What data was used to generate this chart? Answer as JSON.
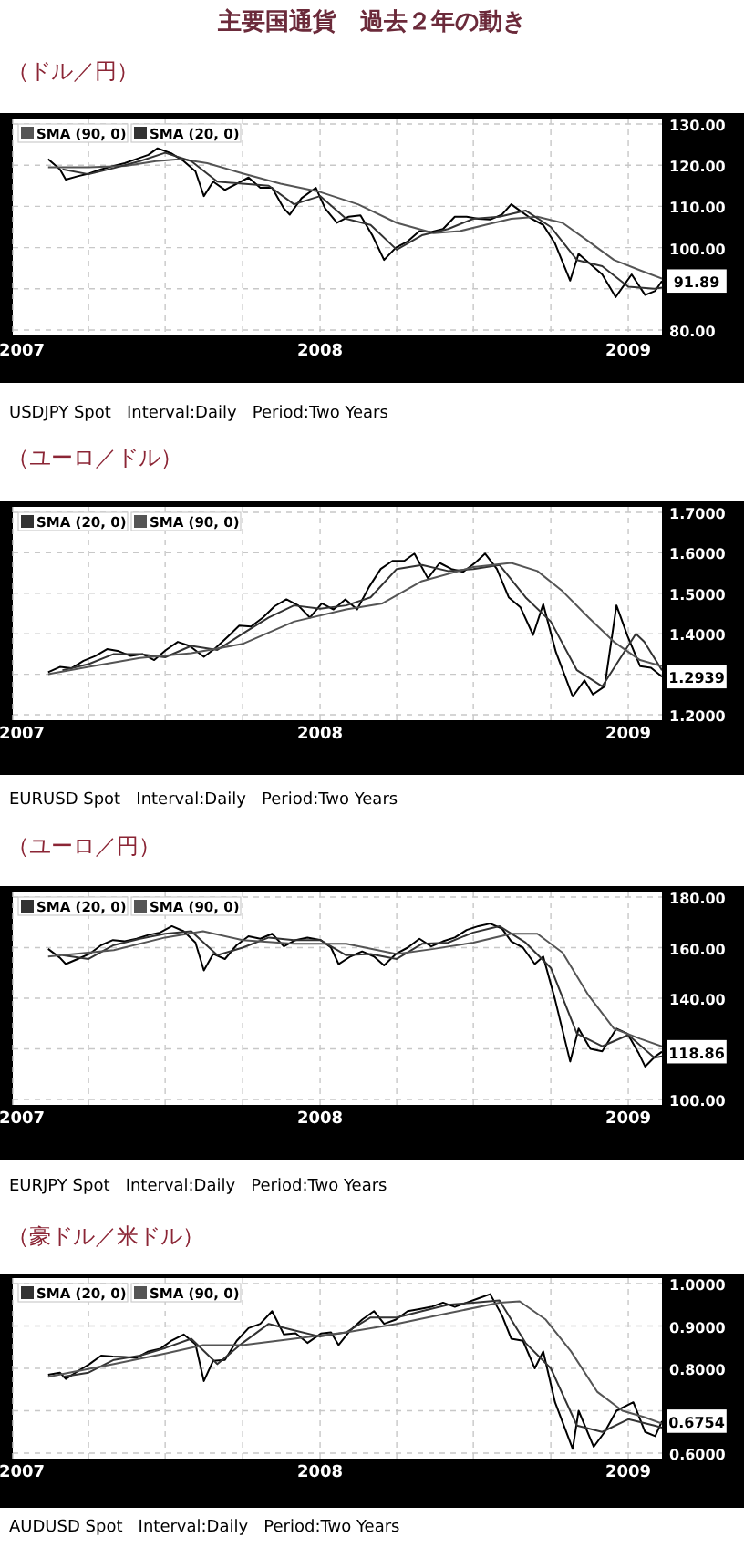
{
  "chart_data": [
    {
      "type": "line",
      "title": "主要国通貨　過去２年の動き",
      "subtitle": "（ドル／円）",
      "xlim": [
        "2007-01-01",
        "2009-02-10"
      ],
      "xticks": [
        "2007",
        {
          "value": "2007-04",
          "label": null
        },
        {
          "value": "2007-07",
          "label": null
        },
        {
          "value": "2007-10",
          "label": null
        },
        "2008",
        {
          "value": "2008-04",
          "label": null
        },
        {
          "value": "2008-07",
          "label": null
        },
        {
          "value": "2008-10",
          "label": null
        },
        "2009"
      ],
      "ylim": [
        80,
        130
      ],
      "yticks": [
        {
          "value": 80,
          "label": "80.00"
        },
        {
          "value": 90,
          "label": null
        },
        {
          "value": 100,
          "label": "100.00"
        },
        {
          "value": 110,
          "label": "110.00"
        },
        {
          "value": 120,
          "label": "120.00"
        },
        {
          "value": 130,
          "label": "130.00"
        }
      ],
      "grid": true,
      "legend": "top left",
      "series": [
        {
          "color": "#000000",
          "x": [
            "2007-02-12",
            "2007-02-26",
            "2007-03-05",
            "2007-03-19",
            "2007-04-02",
            "2007-04-16",
            "2007-04-30",
            "2007-05-14",
            "2007-05-28",
            "2007-06-11",
            "2007-06-22",
            "2007-07-09",
            "2007-07-23",
            "2007-08-06",
            "2007-08-16",
            "2007-08-27",
            "2007-09-10",
            "2007-09-24",
            "2007-10-08",
            "2007-10-22",
            "2007-11-05",
            "2007-11-19",
            "2007-11-26",
            "2007-12-10",
            "2007-12-27",
            "2008-01-07",
            "2008-01-21",
            "2008-02-04",
            "2008-02-18",
            "2008-03-03",
            "2008-03-17",
            "2008-03-31",
            "2008-04-14",
            "2008-04-28",
            "2008-05-12",
            "2008-05-26",
            "2008-06-09",
            "2008-06-23",
            "2008-07-07",
            "2008-07-21",
            "2008-08-04",
            "2008-08-15",
            "2008-08-25",
            "2008-09-08",
            "2008-09-22",
            "2008-10-06",
            "2008-10-24",
            "2008-11-03",
            "2008-11-17",
            "2008-12-01",
            "2008-12-17",
            "2009-01-05",
            "2009-01-21",
            "2009-02-02",
            "2009-02-10"
          ],
          "values": [
            121.5,
            119.0,
            116.5,
            117.3,
            118.0,
            119.0,
            119.8,
            120.5,
            121.5,
            122.5,
            124.1,
            122.8,
            121.0,
            118.5,
            112.5,
            116.0,
            114.0,
            115.5,
            117.0,
            114.5,
            114.5,
            109.5,
            108.0,
            112.0,
            114.5,
            109.5,
            106.0,
            107.5,
            107.8,
            103.0,
            97.0,
            100.0,
            101.5,
            104.0,
            103.8,
            104.5,
            107.5,
            107.5,
            107.0,
            106.8,
            108.0,
            110.5,
            109.0,
            107.0,
            105.5,
            101.0,
            92.0,
            98.5,
            96.0,
            93.5,
            88.0,
            93.5,
            88.5,
            89.5,
            91.89
          ]
        },
        {
          "name": "SMA (90, 0)",
          "color": "#555555",
          "x": [
            "2007-02-12",
            "2007-04-01",
            "2007-05-15",
            "2007-06-20",
            "2007-07-20",
            "2007-08-20",
            "2007-10-01",
            "2007-11-15",
            "2008-01-01",
            "2008-02-15",
            "2008-04-01",
            "2008-05-15",
            "2008-06-15",
            "2008-07-15",
            "2008-08-15",
            "2008-09-15",
            "2008-10-15",
            "2008-11-15",
            "2008-12-15",
            "2009-01-15",
            "2009-02-10"
          ],
          "values": [
            119.5,
            119.5,
            119.8,
            121.0,
            121.5,
            120.5,
            118.0,
            115.5,
            113.5,
            110.5,
            106.0,
            103.5,
            104.0,
            105.5,
            107.0,
            107.5,
            106.0,
            101.5,
            97.0,
            94.5,
            92.5
          ]
        },
        {
          "name": "SMA (20, 0)",
          "color": "#333333",
          "x": [
            "2007-03-01",
            "2007-04-01",
            "2007-05-01",
            "2007-06-01",
            "2007-07-01",
            "2007-08-01",
            "2007-09-01",
            "2007-10-01",
            "2007-11-01",
            "2007-12-01",
            "2008-01-01",
            "2008-02-01",
            "2008-03-01",
            "2008-04-01",
            "2008-05-01",
            "2008-06-01",
            "2008-07-01",
            "2008-08-01",
            "2008-09-01",
            "2008-10-01",
            "2008-11-01",
            "2008-12-01",
            "2009-01-01",
            "2009-02-01",
            "2009-02-10"
          ],
          "values": [
            119.0,
            117.8,
            119.3,
            121.0,
            123.0,
            121.0,
            116.0,
            115.5,
            115.0,
            110.5,
            112.5,
            107.0,
            105.5,
            99.5,
            103.0,
            104.5,
            107.0,
            107.5,
            109.0,
            105.0,
            97.0,
            95.5,
            90.5,
            90.0,
            90.3
          ]
        }
      ],
      "annotations": [
        "USDJPY Spot   Interval:Daily   Period:Two Years",
        {
          "text": "91.89",
          "x": "2009-02-10",
          "y": 91.89
        }
      ]
    },
    {
      "type": "line",
      "subtitle": "（ユーロ／ドル）",
      "xlim": [
        "2007-01-01",
        "2009-02-10"
      ],
      "xticks": [
        "2007",
        {
          "value": "2007-04",
          "label": null
        },
        {
          "value": "2007-07",
          "label": null
        },
        {
          "value": "2007-10",
          "label": null
        },
        "2008",
        {
          "value": "2008-04",
          "label": null
        },
        {
          "value": "2008-07",
          "label": null
        },
        {
          "value": "2008-10",
          "label": null
        },
        "2009"
      ],
      "ylim": [
        1.2,
        1.7
      ],
      "yticks": [
        {
          "value": 1.2,
          "label": "1.2000"
        },
        {
          "value": 1.3,
          "label": null
        },
        {
          "value": 1.4,
          "label": "1.4000"
        },
        {
          "value": 1.5,
          "label": "1.5000"
        },
        {
          "value": 1.6,
          "label": "1.6000"
        },
        {
          "value": 1.7,
          "label": "1.7000"
        }
      ],
      "grid": true,
      "legend": "top left",
      "series": [
        {
          "color": "#000000",
          "x": [
            "2007-02-12",
            "2007-02-26",
            "2007-03-12",
            "2007-03-26",
            "2007-04-09",
            "2007-04-23",
            "2007-05-07",
            "2007-05-21",
            "2007-06-04",
            "2007-06-18",
            "2007-07-02",
            "2007-07-16",
            "2007-07-30",
            "2007-08-16",
            "2007-08-30",
            "2007-09-13",
            "2007-09-27",
            "2007-10-11",
            "2007-10-25",
            "2007-11-08",
            "2007-11-22",
            "2007-12-06",
            "2007-12-20",
            "2008-01-03",
            "2008-01-17",
            "2008-01-31",
            "2008-02-14",
            "2008-02-28",
            "2008-03-13",
            "2008-03-27",
            "2008-04-10",
            "2008-04-22",
            "2008-05-08",
            "2008-05-22",
            "2008-06-05",
            "2008-06-19",
            "2008-07-03",
            "2008-07-15",
            "2008-07-29",
            "2008-08-12",
            "2008-08-26",
            "2008-09-10",
            "2008-09-22",
            "2008-10-07",
            "2008-10-27",
            "2008-11-10",
            "2008-11-20",
            "2008-12-04",
            "2008-12-18",
            "2008-12-31",
            "2009-01-15",
            "2009-01-28",
            "2009-02-10"
          ],
          "values": [
            1.305,
            1.318,
            1.315,
            1.333,
            1.345,
            1.362,
            1.357,
            1.345,
            1.35,
            1.335,
            1.36,
            1.38,
            1.37,
            1.343,
            1.365,
            1.392,
            1.42,
            1.418,
            1.44,
            1.468,
            1.485,
            1.47,
            1.44,
            1.475,
            1.46,
            1.485,
            1.46,
            1.515,
            1.56,
            1.58,
            1.58,
            1.598,
            1.537,
            1.575,
            1.56,
            1.553,
            1.575,
            1.598,
            1.56,
            1.49,
            1.465,
            1.397,
            1.473,
            1.355,
            1.245,
            1.285,
            1.25,
            1.27,
            1.47,
            1.395,
            1.32,
            1.316,
            1.2939
          ]
        },
        {
          "name": "SMA (20, 0)",
          "color": "#333333",
          "x": [
            "2007-03-01",
            "2007-04-01",
            "2007-05-01",
            "2007-06-01",
            "2007-07-01",
            "2007-08-01",
            "2007-09-01",
            "2007-10-01",
            "2007-11-01",
            "2007-12-01",
            "2008-01-01",
            "2008-02-01",
            "2008-03-01",
            "2008-04-01",
            "2008-05-01",
            "2008-06-01",
            "2008-07-01",
            "2008-08-01",
            "2008-09-01",
            "2008-10-01",
            "2008-11-01",
            "2008-12-01",
            "2009-01-10",
            "2009-01-20",
            "2009-02-10"
          ],
          "values": [
            1.31,
            1.325,
            1.35,
            1.35,
            1.342,
            1.37,
            1.36,
            1.4,
            1.44,
            1.47,
            1.462,
            1.47,
            1.49,
            1.56,
            1.57,
            1.555,
            1.56,
            1.57,
            1.49,
            1.43,
            1.31,
            1.27,
            1.4,
            1.38,
            1.31
          ]
        },
        {
          "name": "SMA (90, 0)",
          "color": "#555555",
          "x": [
            "2007-02-12",
            "2007-04-01",
            "2007-06-01",
            "2007-08-01",
            "2007-10-01",
            "2007-12-01",
            "2008-02-01",
            "2008-03-15",
            "2008-05-01",
            "2008-07-01",
            "2008-08-15",
            "2008-09-15",
            "2008-10-15",
            "2008-11-15",
            "2008-12-15",
            "2009-01-15",
            "2009-02-10"
          ],
          "values": [
            1.3,
            1.318,
            1.34,
            1.352,
            1.375,
            1.43,
            1.46,
            1.475,
            1.53,
            1.565,
            1.575,
            1.555,
            1.505,
            1.44,
            1.38,
            1.335,
            1.32
          ]
        }
      ],
      "annotations": [
        "EURUSD Spot   Interval:Daily   Period:Two Years",
        {
          "text": "1.2939",
          "x": "2009-02-10",
          "y": 1.2939
        }
      ]
    },
    {
      "type": "line",
      "subtitle": "（ユーロ／円）",
      "xlim": [
        "2007-01-01",
        "2009-02-10"
      ],
      "xticks": [
        "2007",
        {
          "value": "2007-04",
          "label": null
        },
        {
          "value": "2007-07",
          "label": null
        },
        {
          "value": "2007-10",
          "label": null
        },
        "2008",
        {
          "value": "2008-04",
          "label": null
        },
        {
          "value": "2008-07",
          "label": null
        },
        {
          "value": "2008-10",
          "label": null
        },
        "2009"
      ],
      "ylim": [
        100,
        180
      ],
      "yticks": [
        {
          "value": 100,
          "label": "100.00"
        },
        {
          "value": 120,
          "label": null
        },
        {
          "value": 140,
          "label": "140.00"
        },
        {
          "value": 160,
          "label": "160.00"
        },
        {
          "value": 180,
          "label": "180.00"
        }
      ],
      "grid": true,
      "legend": "top left",
      "series": [
        {
          "color": "#000000",
          "x": [
            "2007-02-12",
            "2007-02-26",
            "2007-03-05",
            "2007-03-19",
            "2007-04-02",
            "2007-04-16",
            "2007-04-30",
            "2007-05-14",
            "2007-05-28",
            "2007-06-11",
            "2007-06-25",
            "2007-07-09",
            "2007-07-23",
            "2007-08-06",
            "2007-08-16",
            "2007-08-27",
            "2007-09-10",
            "2007-09-24",
            "2007-10-08",
            "2007-10-22",
            "2007-11-05",
            "2007-11-19",
            "2007-12-03",
            "2007-12-17",
            "2008-01-02",
            "2008-01-14",
            "2008-01-23",
            "2008-02-06",
            "2008-02-20",
            "2008-03-05",
            "2008-03-17",
            "2008-03-31",
            "2008-04-14",
            "2008-04-28",
            "2008-05-12",
            "2008-05-26",
            "2008-06-09",
            "2008-06-23",
            "2008-07-07",
            "2008-07-21",
            "2008-08-04",
            "2008-08-15",
            "2008-08-29",
            "2008-09-12",
            "2008-09-22",
            "2008-10-06",
            "2008-10-24",
            "2008-11-03",
            "2008-11-17",
            "2008-12-01",
            "2008-12-18",
            "2008-12-31",
            "2009-01-13",
            "2009-01-21",
            "2009-02-02",
            "2009-02-10"
          ],
          "values": [
            159.5,
            156.0,
            153.5,
            155.5,
            157.5,
            161.0,
            163.0,
            162.5,
            163.5,
            165.0,
            166.0,
            168.5,
            166.5,
            162.0,
            151.0,
            157.5,
            155.5,
            161.0,
            164.5,
            163.5,
            165.5,
            160.5,
            163.0,
            164.0,
            163.0,
            160.0,
            153.5,
            156.5,
            158.5,
            156.5,
            153.0,
            157.5,
            160.0,
            163.5,
            160.5,
            162.5,
            164.0,
            167.0,
            168.5,
            169.5,
            167.5,
            162.5,
            160.0,
            153.5,
            156.5,
            139.5,
            115.0,
            128.0,
            120.0,
            119.0,
            128.0,
            126.0,
            118.5,
            113.0,
            117.0,
            118.86
          ]
        },
        {
          "name": "SMA (20, 0)",
          "color": "#333333",
          "x": [
            "2007-03-01",
            "2007-04-01",
            "2007-05-01",
            "2007-06-01",
            "2007-07-01",
            "2007-08-01",
            "2007-09-01",
            "2007-10-01",
            "2007-11-01",
            "2007-12-01",
            "2008-01-01",
            "2008-02-01",
            "2008-03-01",
            "2008-04-01",
            "2008-05-01",
            "2008-06-01",
            "2008-07-01",
            "2008-08-01",
            "2008-09-01",
            "2008-10-01",
            "2008-11-01",
            "2008-12-01",
            "2009-01-01",
            "2009-02-01",
            "2009-02-10"
          ],
          "values": [
            157.0,
            155.5,
            161.0,
            163.5,
            165.5,
            166.5,
            157.0,
            160.0,
            164.0,
            163.0,
            163.0,
            157.0,
            157.5,
            155.5,
            161.5,
            162.0,
            166.0,
            168.5,
            162.0,
            152.0,
            126.0,
            121.0,
            125.5,
            116.5,
            117.0
          ]
        },
        {
          "name": "SMA (90, 0)",
          "color": "#555555",
          "x": [
            "2007-02-12",
            "2007-05-01",
            "2007-07-01",
            "2007-08-15",
            "2007-10-01",
            "2007-12-01",
            "2008-02-01",
            "2008-04-01",
            "2008-05-15",
            "2008-07-01",
            "2008-08-15",
            "2008-09-15",
            "2008-10-15",
            "2008-11-15",
            "2008-12-15",
            "2009-01-15",
            "2009-02-10"
          ],
          "values": [
            156.5,
            159.0,
            164.0,
            166.5,
            163.0,
            161.5,
            161.5,
            157.5,
            159.5,
            162.0,
            165.5,
            165.5,
            158.0,
            141.0,
            128.0,
            124.0,
            121.0
          ]
        }
      ],
      "annotations": [
        "EURJPY Spot   Interval:Daily   Period:Two Years",
        {
          "text": "118.86",
          "x": "2009-02-10",
          "y": 118.86
        }
      ]
    },
    {
      "type": "line",
      "subtitle": "（豪ドル／米ドル）",
      "xlim": [
        "2007-01-01",
        "2009-02-10"
      ],
      "xticks": [
        "2007",
        {
          "value": "2007-04",
          "label": null
        },
        {
          "value": "2007-07",
          "label": null
        },
        {
          "value": "2007-10",
          "label": null
        },
        "2008",
        {
          "value": "2008-04",
          "label": null
        },
        {
          "value": "2008-07",
          "label": null
        },
        {
          "value": "2008-10",
          "label": null
        },
        "2009"
      ],
      "ylim": [
        0.6,
        1.0
      ],
      "yticks": [
        {
          "value": 0.6,
          "label": "0.6000"
        },
        {
          "value": 0.7,
          "label": null
        },
        {
          "value": 0.8,
          "label": "0.8000"
        },
        {
          "value": 0.9,
          "label": "0.9000"
        },
        {
          "value": 1.0,
          "label": "1.0000"
        }
      ],
      "grid": true,
      "legend": "top left",
      "series": [
        {
          "color": "#000000",
          "x": [
            "2007-02-12",
            "2007-02-26",
            "2007-03-05",
            "2007-03-19",
            "2007-04-02",
            "2007-04-16",
            "2007-04-30",
            "2007-05-14",
            "2007-05-28",
            "2007-06-11",
            "2007-06-25",
            "2007-07-09",
            "2007-07-23",
            "2007-08-06",
            "2007-08-16",
            "2007-08-27",
            "2007-09-10",
            "2007-09-24",
            "2007-10-08",
            "2007-10-22",
            "2007-11-05",
            "2007-11-19",
            "2007-12-03",
            "2007-12-17",
            "2008-01-02",
            "2008-01-14",
            "2008-01-23",
            "2008-02-06",
            "2008-02-20",
            "2008-03-05",
            "2008-03-17",
            "2008-03-31",
            "2008-04-14",
            "2008-04-28",
            "2008-05-12",
            "2008-05-26",
            "2008-06-09",
            "2008-06-23",
            "2008-07-07",
            "2008-07-21",
            "2008-08-04",
            "2008-08-15",
            "2008-08-29",
            "2008-09-12",
            "2008-09-22",
            "2008-10-06",
            "2008-10-27",
            "2008-11-03",
            "2008-11-21",
            "2008-12-04",
            "2008-12-18",
            "2009-01-07",
            "2009-01-21",
            "2009-02-02",
            "2009-02-10"
          ],
          "values": [
            0.785,
            0.79,
            0.775,
            0.793,
            0.81,
            0.83,
            0.828,
            0.827,
            0.825,
            0.84,
            0.846,
            0.866,
            0.88,
            0.857,
            0.77,
            0.818,
            0.82,
            0.865,
            0.895,
            0.905,
            0.935,
            0.88,
            0.883,
            0.86,
            0.882,
            0.885,
            0.855,
            0.89,
            0.915,
            0.935,
            0.905,
            0.915,
            0.935,
            0.94,
            0.945,
            0.955,
            0.945,
            0.955,
            0.965,
            0.975,
            0.925,
            0.87,
            0.865,
            0.8,
            0.84,
            0.72,
            0.61,
            0.7,
            0.615,
            0.65,
            0.7,
            0.72,
            0.65,
            0.64,
            0.6754
          ]
        },
        {
          "name": "SMA (20, 0)",
          "color": "#333333",
          "x": [
            "2007-03-01",
            "2007-04-01",
            "2007-05-01",
            "2007-06-01",
            "2007-07-01",
            "2007-08-01",
            "2007-09-01",
            "2007-10-01",
            "2007-11-01",
            "2007-12-01",
            "2008-01-01",
            "2008-02-01",
            "2008-03-01",
            "2008-04-01",
            "2008-05-01",
            "2008-06-01",
            "2008-07-01",
            "2008-08-01",
            "2008-09-01",
            "2008-10-01",
            "2008-11-01",
            "2008-12-01",
            "2009-01-01",
            "2009-02-01",
            "2009-02-10"
          ],
          "values": [
            0.78,
            0.79,
            0.82,
            0.83,
            0.848,
            0.87,
            0.81,
            0.86,
            0.905,
            0.89,
            0.875,
            0.885,
            0.92,
            0.92,
            0.935,
            0.95,
            0.955,
            0.96,
            0.86,
            0.8,
            0.665,
            0.65,
            0.68,
            0.665,
            0.66
          ]
        },
        {
          "name": "SMA (90, 0)",
          "color": "#555555",
          "x": [
            "2007-02-12",
            "2007-05-01",
            "2007-07-01",
            "2007-08-15",
            "2007-10-01",
            "2007-12-01",
            "2008-02-01",
            "2008-04-01",
            "2008-06-01",
            "2008-08-01",
            "2008-08-25",
            "2008-09-25",
            "2008-10-25",
            "2008-11-25",
            "2008-12-25",
            "2009-01-20",
            "2009-02-10"
          ],
          "values": [
            0.78,
            0.81,
            0.835,
            0.855,
            0.855,
            0.87,
            0.885,
            0.905,
            0.93,
            0.955,
            0.958,
            0.915,
            0.84,
            0.745,
            0.7,
            0.685,
            0.67
          ]
        }
      ],
      "annotations": [
        "AUDUSD Spot   Interval:Daily   Period:Two Years",
        {
          "text": "0.6754",
          "x": "2009-02-10",
          "y": 0.6754
        }
      ]
    }
  ]
}
